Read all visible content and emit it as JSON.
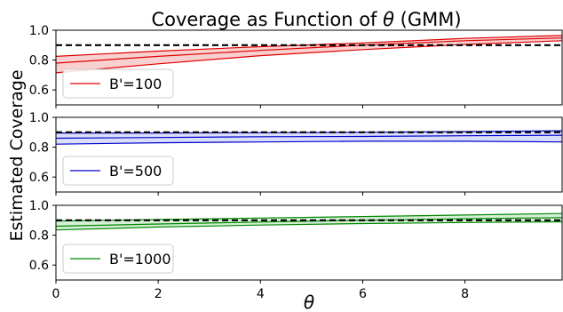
{
  "chart_data": {
    "type": "line",
    "title": "Coverage as Function of θ (GMM)",
    "title_prefix": "Coverage as Function of ",
    "title_symbol": "θ",
    "title_suffix": " (GMM)",
    "xlabel": "θ",
    "ylabel": "Estimated Coverage",
    "xlim": [
      0,
      9.9
    ],
    "ylim": [
      0.5,
      1.0
    ],
    "x_ticks": [
      "0",
      "2",
      "4",
      "6",
      "8"
    ],
    "y_ticks": [
      "0.6",
      "0.8",
      "1.0"
    ],
    "nominal_level": 0.9,
    "legend_position": "lower-left",
    "grid": false,
    "panels": [
      {
        "name": "B'=100",
        "color": "#e00000",
        "fill_color": "#f8c8c8",
        "x": [
          0,
          2,
          4,
          6,
          8,
          9.9
        ],
        "upper": [
          0.825,
          0.86,
          0.89,
          0.915,
          0.945,
          0.965
        ],
        "mean": [
          0.78,
          0.825,
          0.865,
          0.9,
          0.93,
          0.948
        ],
        "lower": [
          0.715,
          0.775,
          0.83,
          0.87,
          0.905,
          0.93
        ]
      },
      {
        "name": "B'=500",
        "color": "#0000cc",
        "fill_color": "#d4d8f8",
        "x": [
          0,
          2,
          4,
          6,
          8,
          9.9
        ],
        "upper": [
          0.895,
          0.895,
          0.897,
          0.9,
          0.905,
          0.91
        ],
        "mean": [
          0.86,
          0.865,
          0.87,
          0.872,
          0.877,
          0.88
        ],
        "lower": [
          0.82,
          0.83,
          0.835,
          0.84,
          0.84,
          0.835
        ]
      },
      {
        "name": "B'=1000",
        "color": "#008800",
        "fill_color": "#cfeccf",
        "x": [
          0,
          2,
          4,
          6,
          8,
          9.9
        ],
        "upper": [
          0.895,
          0.905,
          0.915,
          0.925,
          0.935,
          0.945
        ],
        "mean": [
          0.86,
          0.875,
          0.888,
          0.9,
          0.91,
          0.918
        ],
        "lower": [
          0.835,
          0.855,
          0.868,
          0.878,
          0.885,
          0.89
        ]
      }
    ]
  }
}
